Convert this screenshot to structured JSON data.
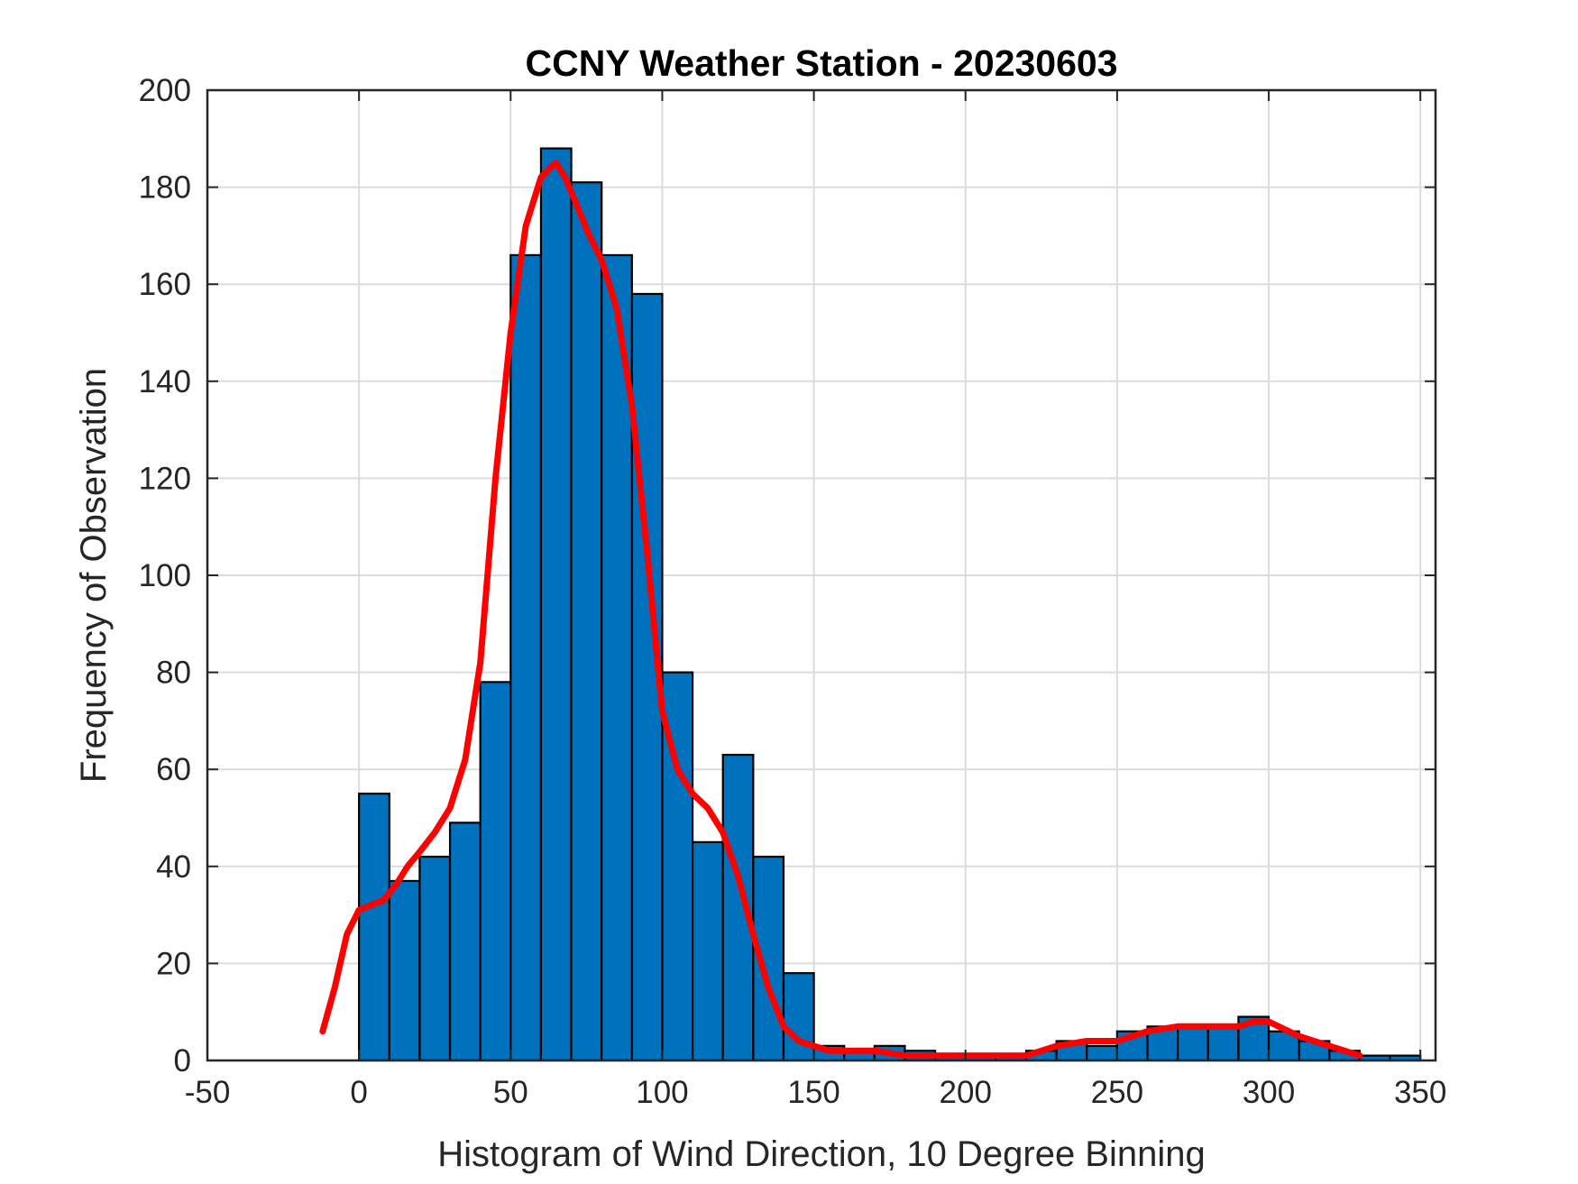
{
  "chart_data": {
    "type": "bar",
    "title": "CCNY Weather Station - 20230603",
    "xlabel": "Histogram of Wind Direction, 10 Degree Binning",
    "ylabel": "Frequency of Observation",
    "xlim": [
      -50,
      355
    ],
    "ylim": [
      0,
      200
    ],
    "xticks": [
      -50,
      0,
      50,
      100,
      150,
      200,
      250,
      300,
      350
    ],
    "yticks": [
      0,
      20,
      40,
      60,
      80,
      100,
      120,
      140,
      160,
      180,
      200
    ],
    "grid": true,
    "bin_width": 10,
    "bin_starts": [
      0,
      10,
      20,
      30,
      40,
      50,
      60,
      70,
      80,
      90,
      100,
      110,
      120,
      130,
      140,
      150,
      160,
      170,
      180,
      190,
      200,
      210,
      220,
      230,
      240,
      250,
      260,
      270,
      280,
      290,
      300,
      310,
      320,
      330,
      340
    ],
    "values": [
      55,
      37,
      42,
      49,
      78,
      166,
      188,
      181,
      166,
      158,
      80,
      45,
      63,
      42,
      18,
      3,
      2,
      3,
      2,
      1,
      1,
      1,
      2,
      4,
      3,
      6,
      7,
      7,
      7,
      9,
      6,
      4,
      2,
      1,
      1
    ],
    "bar_color": "#0072BD",
    "bar_edge_color": "#000000",
    "fit_curve": {
      "color": "#FF0000",
      "x": [
        -12,
        -8,
        -4,
        0,
        4,
        8,
        12,
        16,
        20,
        25,
        30,
        35,
        40,
        45,
        50,
        55,
        60,
        63,
        65,
        68,
        72,
        76,
        80,
        85,
        90,
        95,
        100,
        105,
        110,
        115,
        120,
        125,
        130,
        135,
        140,
        145,
        150,
        155,
        160,
        170,
        180,
        190,
        200,
        210,
        220,
        230,
        240,
        250,
        260,
        270,
        280,
        290,
        295,
        300,
        310,
        320,
        330
      ],
      "y": [
        6,
        15,
        26,
        31,
        32,
        33,
        36,
        40,
        43,
        47,
        52,
        62,
        82,
        120,
        150,
        172,
        182,
        184,
        185,
        182,
        176,
        170,
        165,
        155,
        135,
        105,
        72,
        60,
        55,
        52,
        47,
        38,
        26,
        15,
        7,
        4,
        3,
        2,
        2,
        2,
        1,
        1,
        1,
        1,
        1,
        3,
        4,
        4,
        6,
        7,
        7,
        7,
        8,
        8,
        5,
        3,
        1
      ]
    }
  }
}
